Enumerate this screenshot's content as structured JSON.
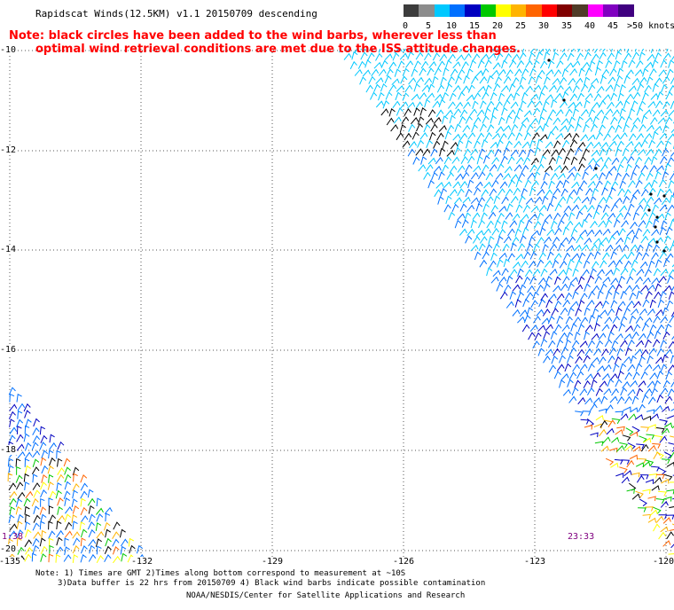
{
  "title": "Rapidscat Winds(12.5KM) v1.1 20150709 descending",
  "note_line1": "Note: black circles have been added to the wind barbs, wherever less than",
  "note_line2": "optimal wind retrieval conditions are met due to the ISS attitude changes.",
  "legend": {
    "colors": [
      "#3c3c3c",
      "#8c8c8c",
      "#00c8ff",
      "#0070ff",
      "#0000c0",
      "#00c800",
      "#ffff00",
      "#ffb400",
      "#ff6400",
      "#ff0000",
      "#800000",
      "#503c28",
      "#ff00ff",
      "#8000c0",
      "#400080"
    ],
    "labels": [
      "0",
      "5",
      "10",
      "15",
      "20",
      "25",
      "30",
      "35",
      "40",
      "45",
      ">50 knots"
    ]
  },
  "lat_labels": [
    "-10",
    "-12",
    "-14",
    "-16",
    "-18",
    "-20"
  ],
  "lon_labels": [
    "-135",
    "-132",
    "-129",
    "-126",
    "-123",
    "-120"
  ],
  "time_labels": [
    "1:38",
    "23:33"
  ],
  "footer": {
    "line1": "Note: 1) Times are GMT 2)Times along bottom correspond to measurement at ~10S",
    "line2": "3)Data buffer is 22 hrs from 20150709 4) Black wind barbs indicate possible contamination",
    "line3": "NOAA/NESDIS/Center for Satellite Applications and Research"
  },
  "map_data": {
    "lon_range": [
      -135,
      -120
    ],
    "lat_range": [
      -20.25,
      -9.9
    ],
    "gridlines": true
  }
}
